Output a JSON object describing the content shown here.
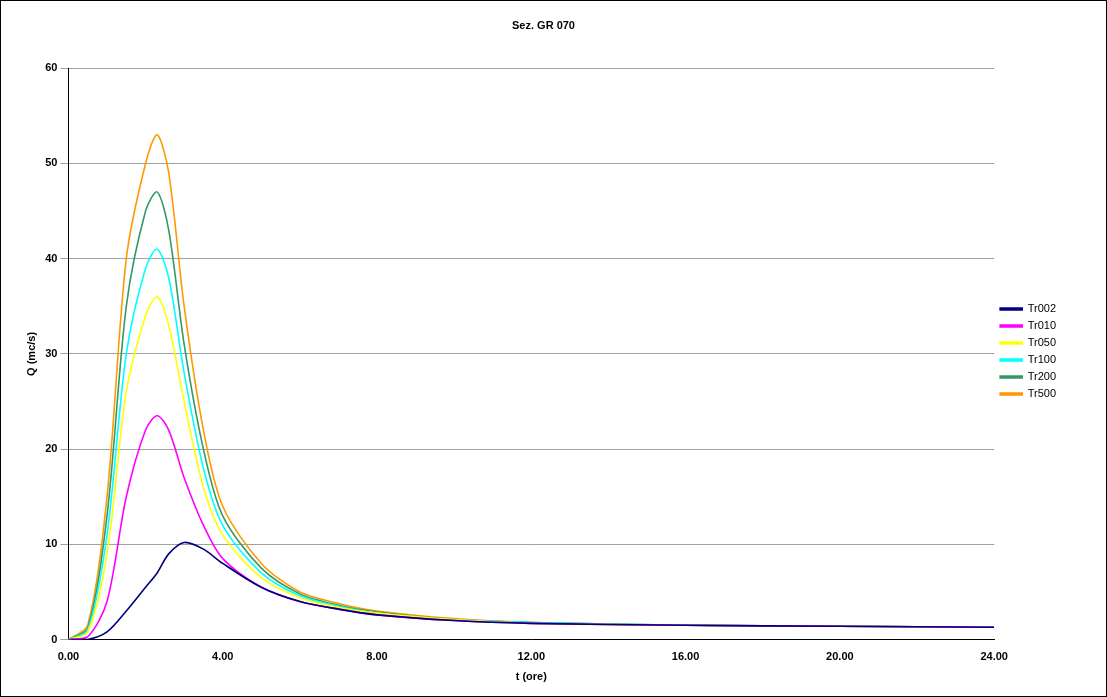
{
  "chart_data": {
    "type": "line",
    "title": "Sez. GR 070",
    "x_label": "t (ore)",
    "y_label": "Q (mc/s)",
    "x": [
      0,
      0.5,
      1,
      1.5,
      2,
      2.3,
      2.6,
      3,
      3.5,
      4,
      5,
      6,
      7,
      8,
      10,
      12,
      16,
      20,
      24
    ],
    "series": [
      {
        "name": "Tr002",
        "color": "#000080",
        "values": [
          0,
          0,
          0.8,
          3,
          5.5,
          7,
          9,
          10.2,
          9.5,
          8,
          5.5,
          4,
          3.2,
          2.6,
          2,
          1.7,
          1.5,
          1.4,
          1.3
        ]
      },
      {
        "name": "Tr010",
        "color": "#ff00ff",
        "values": [
          0,
          0.3,
          4,
          15,
          22,
          23.5,
          22,
          17,
          12,
          8.5,
          5.5,
          4,
          3.2,
          2.6,
          2,
          1.7,
          1.5,
          1.4,
          1.3
        ]
      },
      {
        "name": "Tr050",
        "color": "#ffff00",
        "values": [
          0,
          0.8,
          9,
          26,
          34,
          36,
          33,
          25,
          16,
          11,
          6.5,
          4.4,
          3.4,
          2.8,
          2.1,
          1.7,
          1.5,
          1.4,
          1.3
        ]
      },
      {
        "name": "Tr100",
        "color": "#00ffff",
        "values": [
          0,
          1,
          11,
          30,
          39,
          41,
          38,
          28,
          18,
          12,
          7,
          4.6,
          3.5,
          2.8,
          2.1,
          1.8,
          1.5,
          1.4,
          1.3
        ]
      },
      {
        "name": "Tr200",
        "color": "#339966",
        "values": [
          0,
          1.2,
          13,
          35,
          45,
          47,
          43,
          31,
          20,
          13,
          7.5,
          4.8,
          3.6,
          2.9,
          2.1,
          1.8,
          1.5,
          1.4,
          1.3
        ]
      },
      {
        "name": "Tr500",
        "color": "#ff9900",
        "values": [
          0,
          1.5,
          15,
          40,
          50,
          53,
          49,
          35,
          22,
          14,
          8,
          5,
          3.8,
          3,
          2.2,
          1.8,
          1.5,
          1.4,
          1.3
        ]
      }
    ],
    "xlim": [
      0,
      24
    ],
    "xticks": [
      {
        "value": 0,
        "label": "0.00"
      },
      {
        "value": 4,
        "label": "4.00"
      },
      {
        "value": 8,
        "label": "8.00"
      },
      {
        "value": 12,
        "label": "12.00"
      },
      {
        "value": 16,
        "label": "16.00"
      },
      {
        "value": 20,
        "label": "20.00"
      },
      {
        "value": 24,
        "label": "24.00"
      }
    ],
    "ylim": [
      0,
      60
    ],
    "yticks": [
      0,
      10,
      20,
      30,
      40,
      50,
      60
    ],
    "grid": true,
    "legend": "right"
  }
}
